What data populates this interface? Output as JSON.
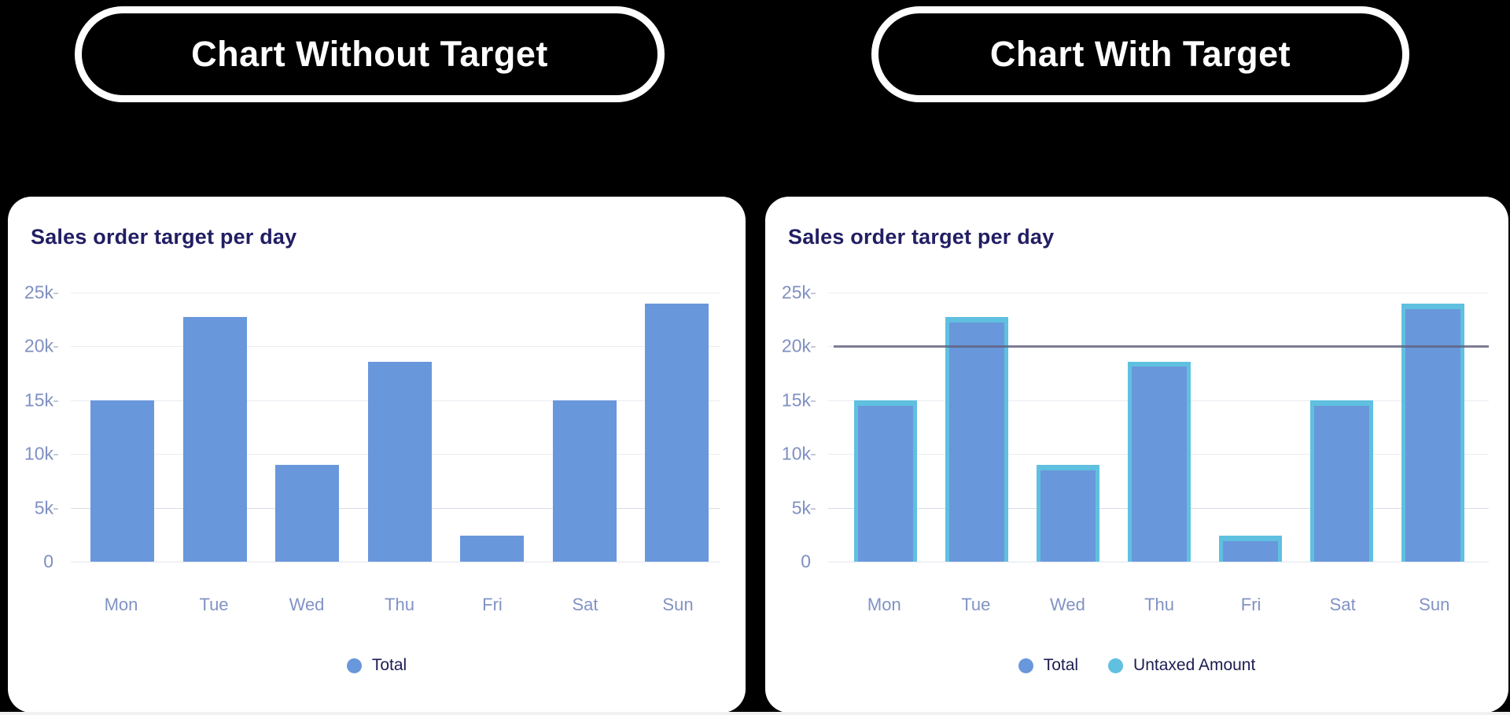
{
  "badges": {
    "left": "Chart Without Target",
    "right": "Chart With Target"
  },
  "colors": {
    "badge_purple": "#8c3097",
    "badge_border": "#ffffff",
    "bar_blue": "#6997db",
    "bar_cyan": "#5fc0e0",
    "target_line": "#62627f",
    "title_navy": "#221e63",
    "axis_label_blue": "#8193c4",
    "legend_text_navy": "#1c1c52",
    "card_background": "#ffffff",
    "page_background": "#000000"
  },
  "chart_data": [
    {
      "type": "bar",
      "title": "Sales order target per day",
      "categories": [
        "Mon",
        "Tue",
        "Wed",
        "Thu",
        "Fri",
        "Sat",
        "Sun"
      ],
      "series": [
        {
          "name": "Total",
          "color": "#6997db",
          "values": [
            15000,
            22700,
            9000,
            18600,
            2400,
            15000,
            24000
          ]
        }
      ],
      "ylim": [
        0,
        25000
      ],
      "yticks": [
        "25k",
        "20k",
        "15k",
        "10k",
        "5k",
        "0"
      ],
      "xlabel": "",
      "ylabel": "",
      "grid": "faint horizontal lines",
      "legend_position": "bottom-center"
    },
    {
      "type": "bar",
      "title": "Sales order target per day",
      "categories": [
        "Mon",
        "Tue",
        "Wed",
        "Thu",
        "Fri",
        "Sat",
        "Sun"
      ],
      "series": [
        {
          "name": "Total",
          "color": "#6997db",
          "values": [
            14500,
            22200,
            8500,
            18100,
            1900,
            14500,
            23500
          ]
        },
        {
          "name": "Untaxed Amount",
          "color": "#5fc0e0",
          "values": [
            15000,
            22700,
            9000,
            18600,
            2400,
            15000,
            24000
          ]
        }
      ],
      "target_line": {
        "value": 20000,
        "color": "#62627f"
      },
      "ylim": [
        0,
        25000
      ],
      "yticks": [
        "25k",
        "20k",
        "15k",
        "10k",
        "5k",
        "0"
      ],
      "xlabel": "",
      "ylabel": "",
      "grid": "faint horizontal lines",
      "legend_position": "bottom-center"
    }
  ]
}
